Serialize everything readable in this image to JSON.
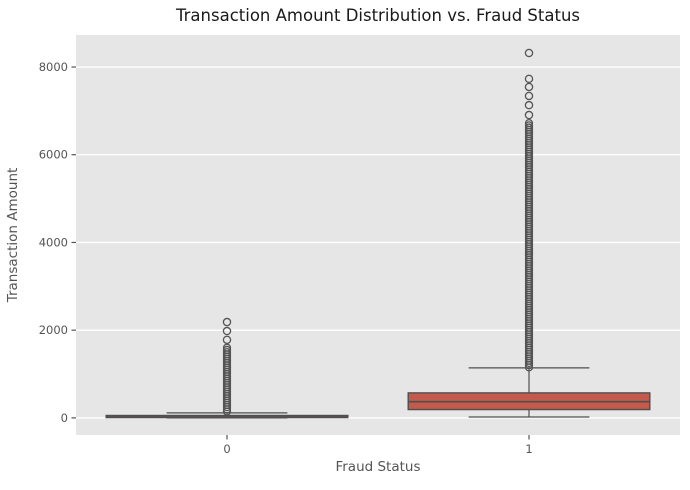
{
  "chart_data": {
    "type": "boxplot",
    "title": "Transaction Amount Distribution vs. Fraud Status",
    "xlabel": "Fraud Status",
    "ylabel": "Transaction Amount",
    "categories": [
      "0",
      "1"
    ],
    "xlim": [
      -0.5,
      1.5
    ],
    "ylim": [
      -390,
      8730
    ],
    "yticks": [
      0,
      2000,
      4000,
      6000,
      8000
    ],
    "ytick_labels": [
      "0",
      "2000",
      "4000",
      "6000",
      "8000"
    ],
    "grid": "horizontal-only",
    "legend": "none",
    "boxes": [
      {
        "category": "0",
        "q1": 8,
        "median": 22,
        "q3": 55,
        "whisker_low": 0,
        "whisker_high": 115,
        "outliers_dense_range": {
          "min": 120,
          "max": 1600
        },
        "outliers_discrete": [
          1780,
          1980,
          2185
        ]
      },
      {
        "category": "1",
        "q1": 190,
        "median": 370,
        "q3": 570,
        "whisker_low": 20,
        "whisker_high": 1140,
        "outliers_dense_range": {
          "min": 1150,
          "max": 6720
        },
        "outliers_discrete": [
          6905,
          7130,
          7340,
          7545,
          7730,
          8320
        ]
      }
    ],
    "style": {
      "box_fill": "#c35a4b",
      "line_color": "#4f4f4f",
      "flier_color": "#545454",
      "plot_bg": "#e6e6e6",
      "grid_color": "#ffffff",
      "title_color": "#1a1a1a",
      "text_color": "#555555",
      "box_width_units": 0.8,
      "cap_width_units": 0.4
    }
  }
}
